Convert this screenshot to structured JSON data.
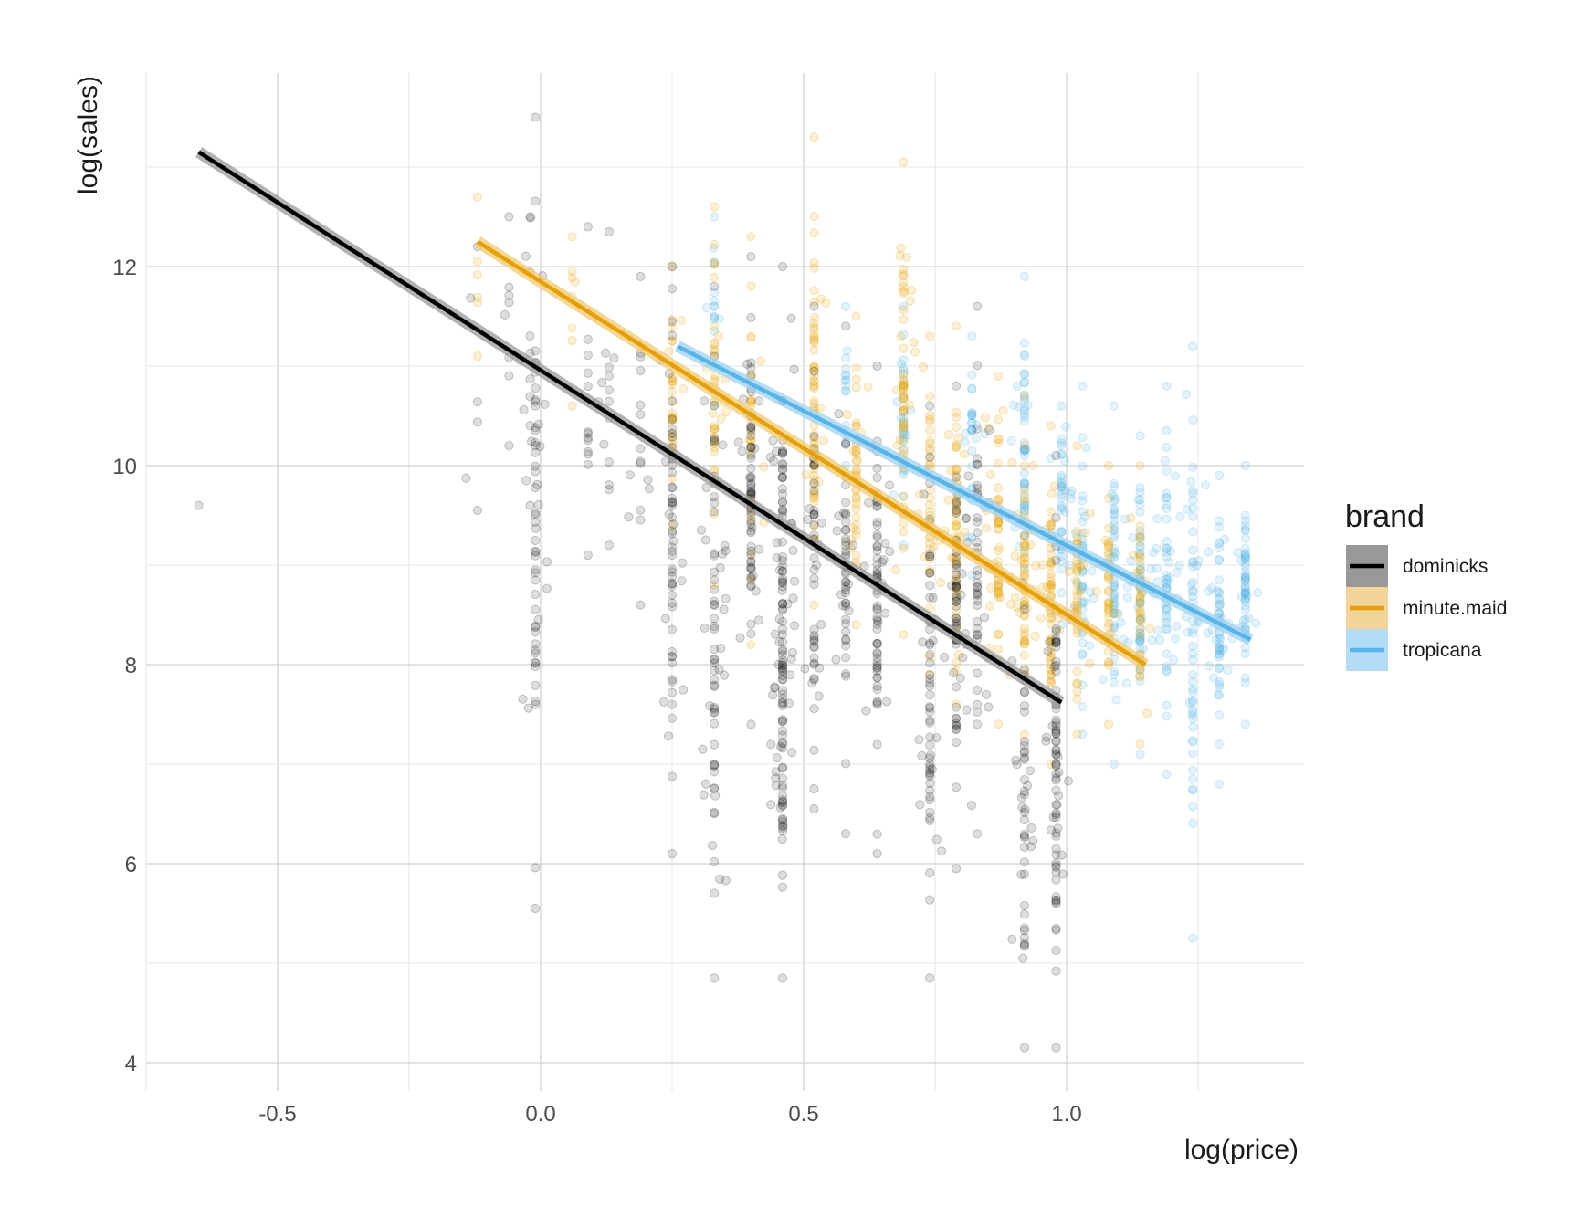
{
  "chart_data": {
    "type": "scatter",
    "xlabel": "log(price)",
    "ylabel": "log(sales)",
    "xlim": [
      -0.75,
      1.45
    ],
    "ylim": [
      3.7,
      13.85
    ],
    "xticks": [
      -0.5,
      0.0,
      0.5,
      1.0
    ],
    "xtick_labels": [
      "-0.5",
      "0.0",
      "0.5",
      "1.0"
    ],
    "yticks": [
      4,
      6,
      8,
      10,
      12
    ],
    "ytick_labels": [
      "4",
      "6",
      "8",
      "10",
      "12"
    ],
    "grid": true,
    "legend_position": "right",
    "legend": {
      "title": "brand",
      "items": [
        {
          "label": "dominicks",
          "color": "#000000",
          "band": "#999999"
        },
        {
          "label": "minute.maid",
          "color": "#e69f00",
          "band": "#f2d39a"
        },
        {
          "label": "tropicana",
          "color": "#56b4e9",
          "band": "#b3dcf5"
        }
      ]
    },
    "series": [
      {
        "name": "dominicks",
        "color": "#000000",
        "fit": {
          "x": [
            -0.65,
            0.99
          ],
          "y": [
            13.15,
            7.62
          ]
        },
        "columns": [
          {
            "x": -0.65,
            "lo": 9.6,
            "hi": 9.6,
            "n": 1
          },
          {
            "x": -0.12,
            "lo": 9.55,
            "hi": 12.2,
            "n": 6
          },
          {
            "x": -0.06,
            "lo": 10.2,
            "hi": 12.5,
            "n": 8
          },
          {
            "x": -0.02,
            "lo": 9.6,
            "hi": 12.5,
            "n": 10
          },
          {
            "x": -0.01,
            "lo": 5.55,
            "hi": 13.5,
            "n": 60
          },
          {
            "x": 0.09,
            "lo": 9.1,
            "hi": 12.4,
            "n": 14
          },
          {
            "x": 0.13,
            "lo": 9.2,
            "hi": 12.35,
            "n": 14
          },
          {
            "x": 0.19,
            "lo": 8.6,
            "hi": 11.9,
            "n": 16
          },
          {
            "x": 0.25,
            "lo": 6.1,
            "hi": 12.0,
            "n": 60
          },
          {
            "x": 0.33,
            "lo": 4.85,
            "hi": 11.8,
            "n": 70
          },
          {
            "x": 0.4,
            "lo": 7.4,
            "hi": 12.1,
            "n": 70
          },
          {
            "x": 0.46,
            "lo": 4.85,
            "hi": 12.0,
            "n": 130
          },
          {
            "x": 0.52,
            "lo": 6.55,
            "hi": 11.6,
            "n": 50
          },
          {
            "x": 0.58,
            "lo": 6.3,
            "hi": 11.4,
            "n": 50
          },
          {
            "x": 0.64,
            "lo": 6.1,
            "hi": 11.0,
            "n": 70
          },
          {
            "x": 0.74,
            "lo": 4.85,
            "hi": 10.6,
            "n": 60
          },
          {
            "x": 0.79,
            "lo": 5.95,
            "hi": 10.8,
            "n": 60
          },
          {
            "x": 0.83,
            "lo": 6.3,
            "hi": 11.6,
            "n": 50
          },
          {
            "x": 0.92,
            "lo": 4.15,
            "hi": 9.3,
            "n": 50
          },
          {
            "x": 0.98,
            "lo": 4.15,
            "hi": 10.1,
            "n": 80
          }
        ]
      },
      {
        "name": "minute.maid",
        "color": "#e69f00",
        "fit": {
          "x": [
            -0.12,
            1.15
          ],
          "y": [
            12.25,
            8.0
          ]
        },
        "columns": [
          {
            "x": -0.12,
            "lo": 11.1,
            "hi": 12.7,
            "n": 6
          },
          {
            "x": 0.06,
            "lo": 10.6,
            "hi": 12.3,
            "n": 8
          },
          {
            "x": 0.25,
            "lo": 9.4,
            "hi": 12.0,
            "n": 30
          },
          {
            "x": 0.33,
            "lo": 8.8,
            "hi": 12.6,
            "n": 40
          },
          {
            "x": 0.4,
            "lo": 8.2,
            "hi": 12.3,
            "n": 30
          },
          {
            "x": 0.52,
            "lo": 8.6,
            "hi": 13.3,
            "n": 60
          },
          {
            "x": 0.6,
            "lo": 8.4,
            "hi": 11.5,
            "n": 40
          },
          {
            "x": 0.69,
            "lo": 8.3,
            "hi": 13.05,
            "n": 60
          },
          {
            "x": 0.74,
            "lo": 7.9,
            "hi": 11.3,
            "n": 40
          },
          {
            "x": 0.79,
            "lo": 7.6,
            "hi": 11.4,
            "n": 60
          },
          {
            "x": 0.87,
            "lo": 7.4,
            "hi": 10.9,
            "n": 60
          },
          {
            "x": 0.92,
            "lo": 7.3,
            "hi": 10.7,
            "n": 60
          },
          {
            "x": 0.97,
            "lo": 7.0,
            "hi": 10.4,
            "n": 60
          },
          {
            "x": 1.02,
            "lo": 7.3,
            "hi": 10.2,
            "n": 40
          },
          {
            "x": 1.08,
            "lo": 7.4,
            "hi": 10.0,
            "n": 40
          },
          {
            "x": 1.14,
            "lo": 7.2,
            "hi": 10.0,
            "n": 40
          }
        ]
      },
      {
        "name": "tropicana",
        "color": "#56b4e9",
        "fit": {
          "x": [
            0.26,
            1.35
          ],
          "y": [
            11.2,
            8.25
          ]
        },
        "columns": [
          {
            "x": 0.33,
            "lo": 10.6,
            "hi": 12.5,
            "n": 15
          },
          {
            "x": 0.58,
            "lo": 10.0,
            "hi": 11.6,
            "n": 15
          },
          {
            "x": 0.69,
            "lo": 9.2,
            "hi": 11.6,
            "n": 30
          },
          {
            "x": 0.82,
            "lo": 8.9,
            "hi": 11.3,
            "n": 30
          },
          {
            "x": 0.92,
            "lo": 8.6,
            "hi": 11.9,
            "n": 50
          },
          {
            "x": 0.99,
            "lo": 8.4,
            "hi": 10.6,
            "n": 40
          },
          {
            "x": 1.03,
            "lo": 7.3,
            "hi": 10.8,
            "n": 50
          },
          {
            "x": 1.09,
            "lo": 7.0,
            "hi": 10.6,
            "n": 60
          },
          {
            "x": 1.14,
            "lo": 7.1,
            "hi": 10.3,
            "n": 60
          },
          {
            "x": 1.19,
            "lo": 6.9,
            "hi": 10.8,
            "n": 60
          },
          {
            "x": 1.24,
            "lo": 5.25,
            "hi": 11.2,
            "n": 60
          },
          {
            "x": 1.29,
            "lo": 6.8,
            "hi": 9.9,
            "n": 60
          },
          {
            "x": 1.34,
            "lo": 7.4,
            "hi": 10.0,
            "n": 60
          }
        ]
      }
    ]
  }
}
